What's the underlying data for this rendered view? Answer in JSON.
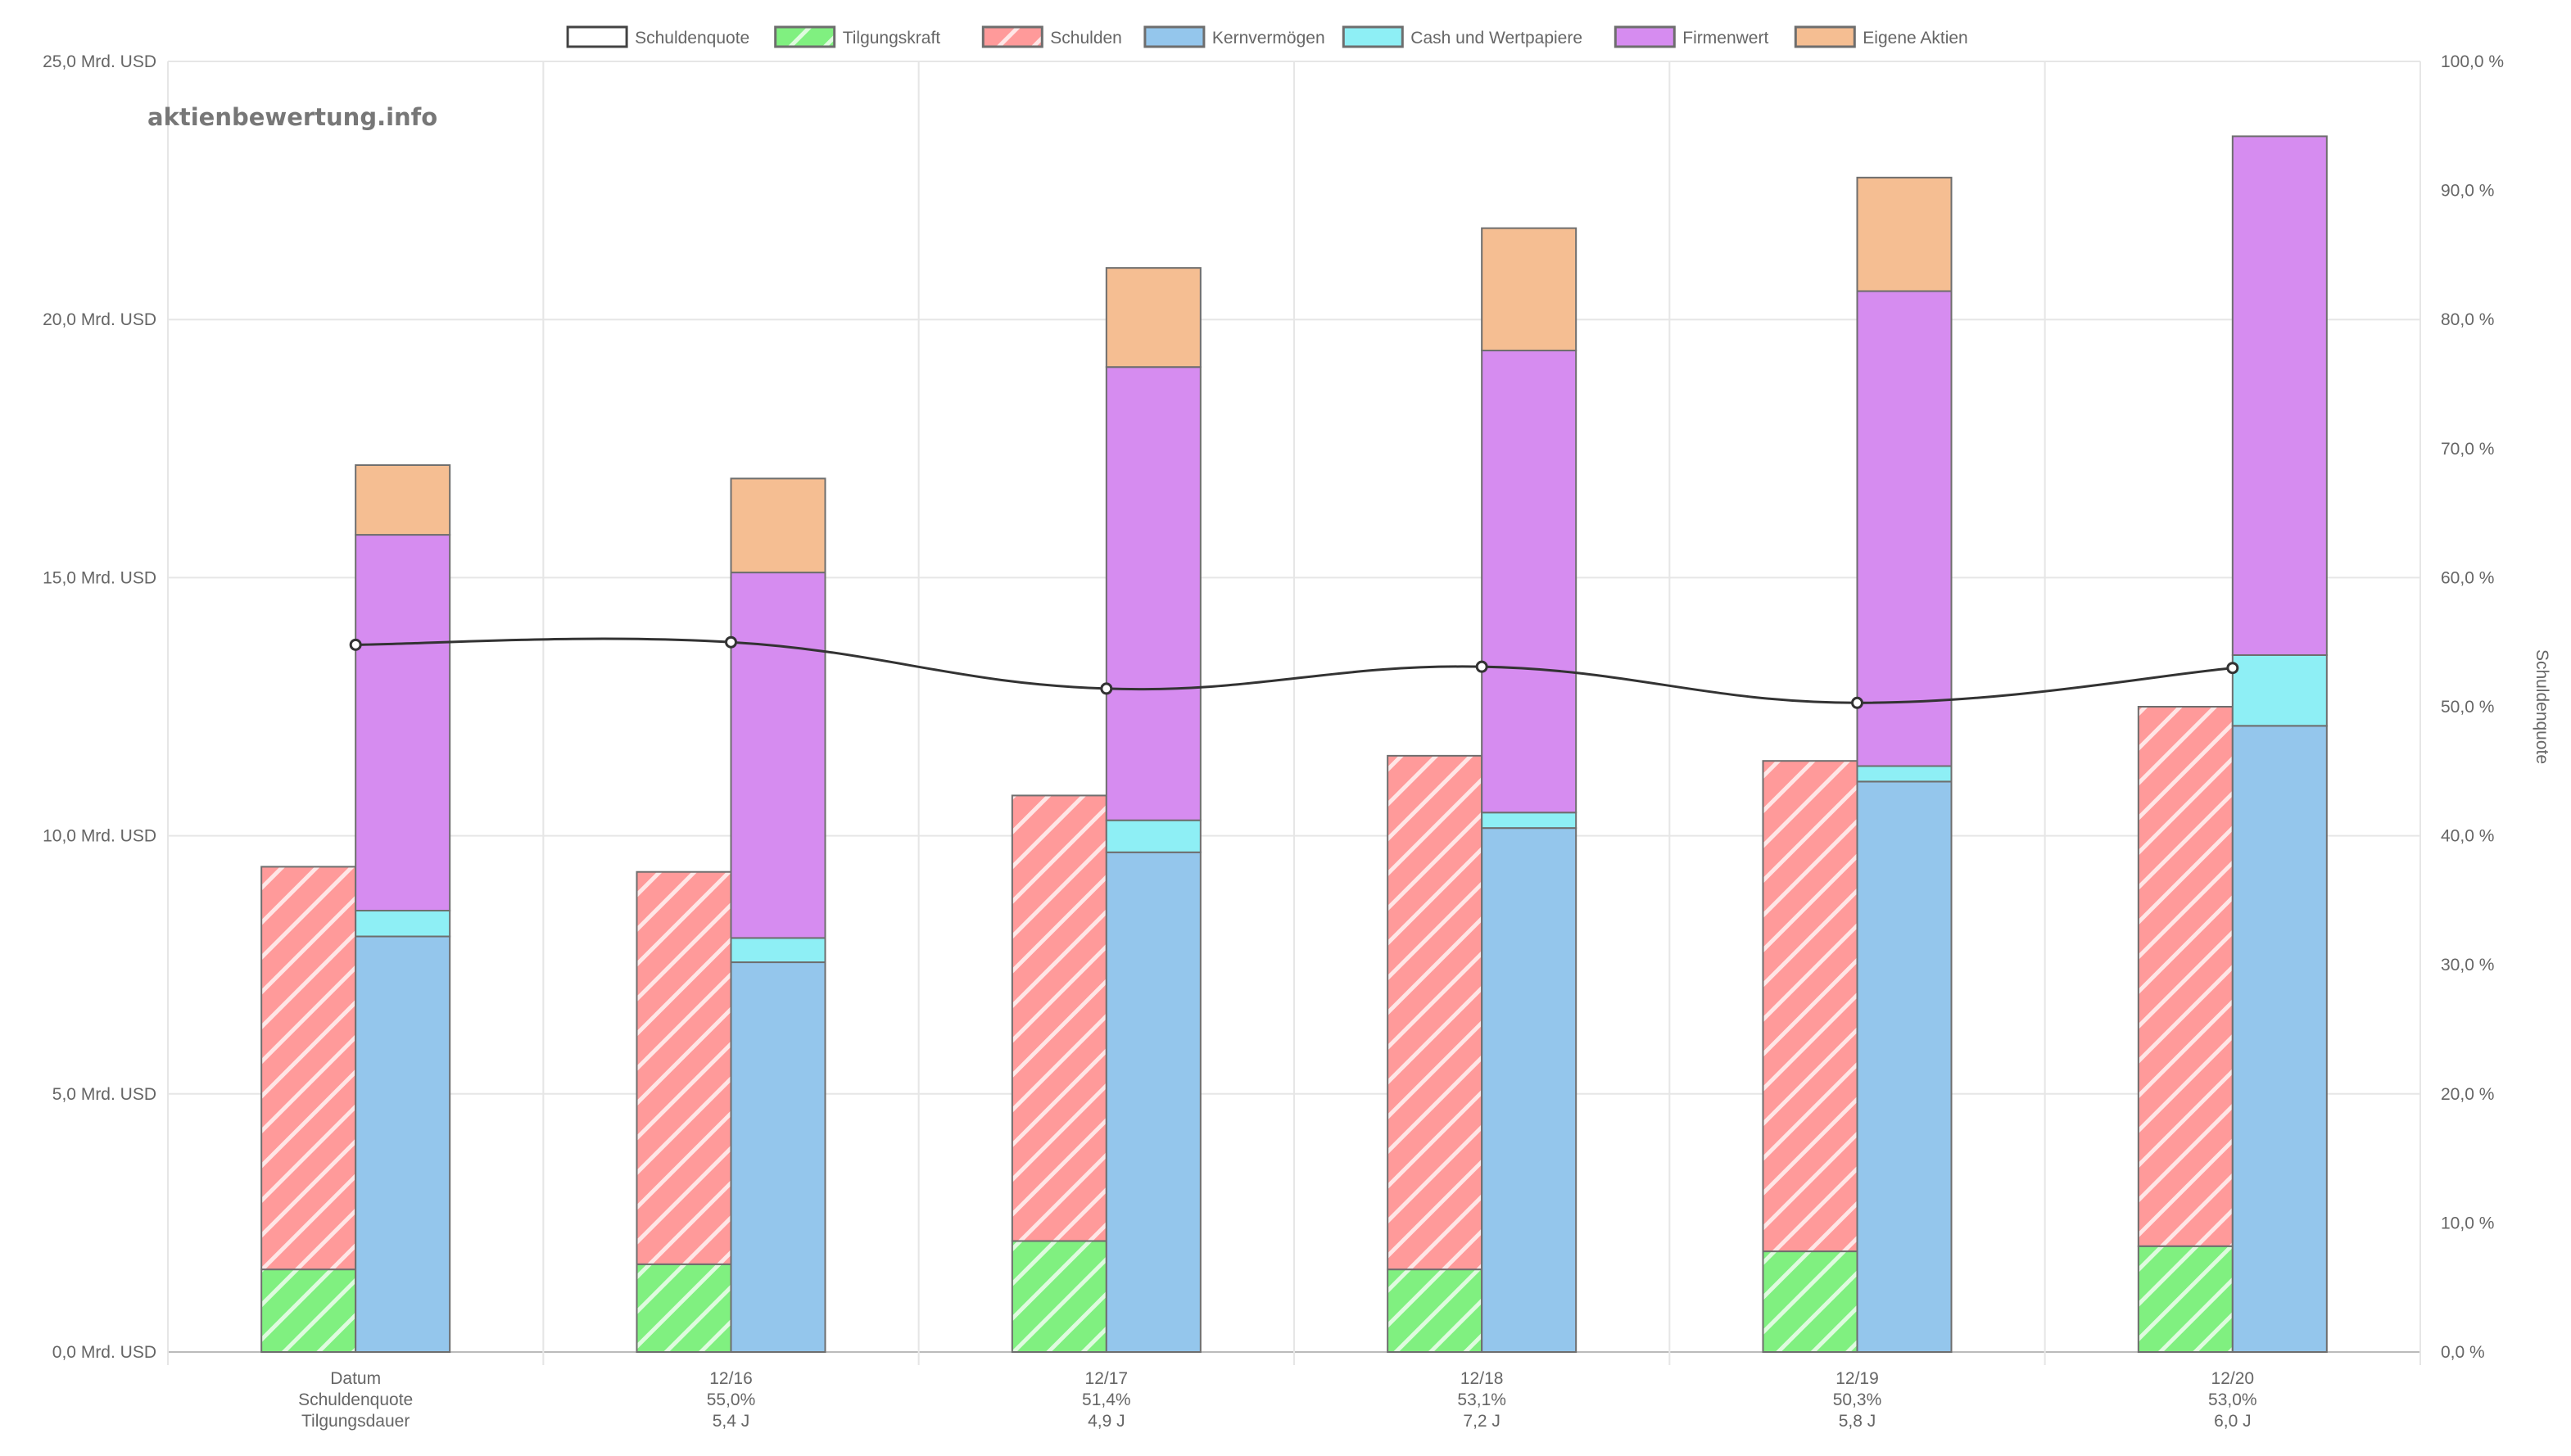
{
  "watermark": "aktienbewertung.info",
  "colors": {
    "tilgungskraft": "#80f080",
    "schulden": "#ff9a9a",
    "kernvermoegen": "#94c6ec",
    "cash": "#8eeff5",
    "firmenwert": "#d68cf0",
    "eigene_aktien": "#f5be92",
    "line": "#333333",
    "grid": "#e6e6e6"
  },
  "chart_data": {
    "type": "bar",
    "categories": [
      [
        "Datum",
        "Schuldenquote",
        "Tilgungsdauer"
      ],
      [
        "12/16",
        "55,0%",
        "5,4 J"
      ],
      [
        "12/17",
        "51,4%",
        "4,9 J"
      ],
      [
        "12/18",
        "53,1%",
        "7,2 J"
      ],
      [
        "12/19",
        "50,3%",
        "5,8 J"
      ],
      [
        "12/20",
        "53,0%",
        "6,0 J"
      ]
    ],
    "legend": [
      "Schuldenquote",
      "Tilgungskraft",
      "Schulden",
      "Kernvermögen",
      "Cash und Wertpapiere",
      "Firmenwert",
      "Eigene Aktien"
    ],
    "legend_position": "top",
    "y_left": {
      "min": 0,
      "max": 25,
      "unit": "Mrd. USD",
      "ticks": [
        "0,0 Mrd. USD",
        "5,0 Mrd. USD",
        "10,0 Mrd. USD",
        "15,0 Mrd. USD",
        "20,0 Mrd. USD",
        "25,0 Mrd. USD"
      ]
    },
    "y_right": {
      "min": 0,
      "max": 100,
      "label": "Schuldenquote",
      "ticks": [
        "0,0 %",
        "10,0 %",
        "20,0 %",
        "30,0 %",
        "40,0 %",
        "50,0 %",
        "60,0 %",
        "70,0 %",
        "80,0 %",
        "90,0 %",
        "100,0 %"
      ]
    },
    "grid": true,
    "debt_stack": {
      "tilgungskraft": [
        1.6,
        1.7,
        2.15,
        1.6,
        1.95,
        2.05
      ],
      "schulden": [
        7.8,
        7.6,
        8.63,
        9.95,
        9.5,
        10.45
      ]
    },
    "asset_stack": {
      "kernvermoegen": [
        8.05,
        7.55,
        9.68,
        10.15,
        11.05,
        12.13
      ],
      "cash_und_wertpapiere": [
        0.5,
        0.47,
        0.62,
        0.3,
        0.3,
        1.37
      ],
      "firmenwert": [
        7.28,
        7.08,
        8.78,
        8.95,
        9.2,
        10.05
      ],
      "eigene_aktien": [
        1.35,
        1.82,
        1.92,
        2.37,
        2.2,
        0
      ]
    },
    "schuldenquote_percent": [
      54.8,
      55.0,
      51.4,
      53.1,
      50.3,
      53.0
    ]
  }
}
